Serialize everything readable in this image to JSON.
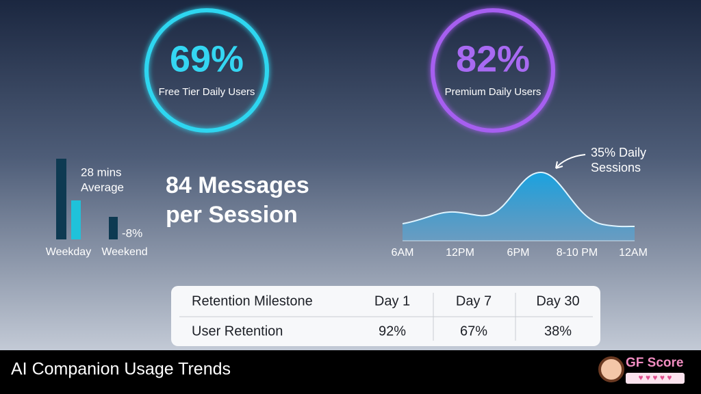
{
  "stats": [
    {
      "value": "69%",
      "label": "Free Tier Daily Users"
    },
    {
      "value": "82%",
      "label": "Premium Daily Users"
    }
  ],
  "session_length": {
    "annotation": [
      "28 mins",
      "Average"
    ],
    "change": "-8%",
    "categories": [
      "Weekday",
      "Weekend"
    ]
  },
  "messages": {
    "lines": [
      "84 Messages",
      "per Session"
    ]
  },
  "daily_sessions": {
    "annotation": [
      "35% Daily",
      "Sessions"
    ],
    "x_labels": [
      "6AM",
      "12PM",
      "6PM",
      "8-10 PM",
      "12AM"
    ]
  },
  "table": {
    "header": [
      "Retention Milestone",
      "Day 1",
      "Day 7",
      "Day 30"
    ],
    "rows": [
      [
        "User Retention",
        "92%",
        "67%",
        "38%"
      ]
    ]
  },
  "footer": {
    "title": "AI Companion Usage Trends",
    "brand": "GF Score"
  }
}
